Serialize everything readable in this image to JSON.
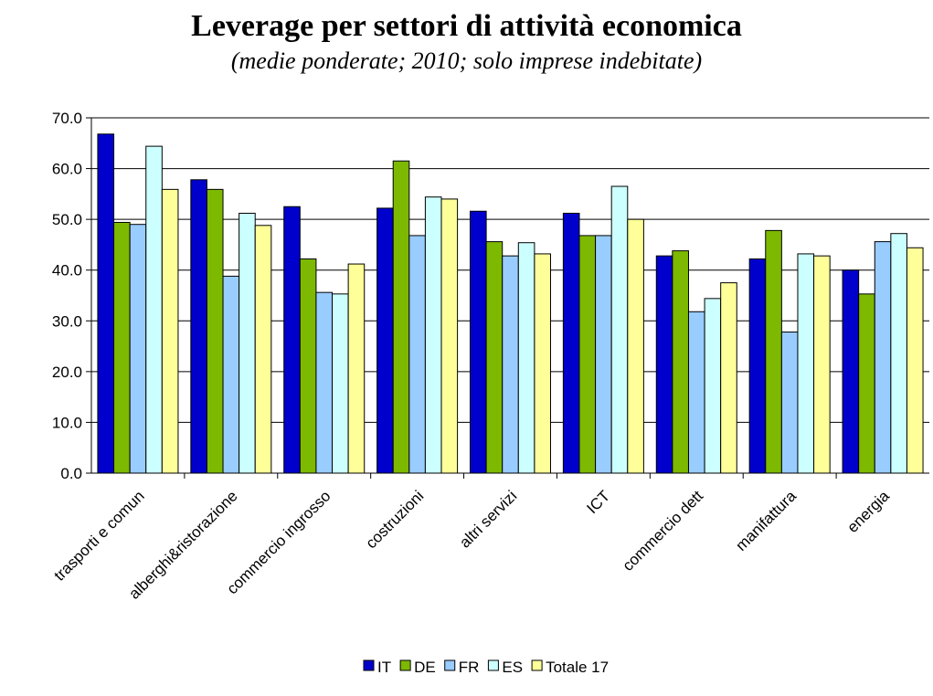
{
  "chart_data": {
    "type": "bar",
    "title": "Leverage per settori di attività economica",
    "subtitle": "(medie ponderate; 2010; solo imprese indebitate)",
    "categories": [
      "trasporti e comun",
      "alberghi&ristorazione",
      "commercio ingrosso",
      "costruzioni",
      "altri servizi",
      "ICT",
      "commercio dett",
      "manifattura",
      "energia"
    ],
    "series": [
      {
        "name": "IT",
        "color": "#0000cc",
        "values": [
          66.8,
          57.8,
          52.5,
          52.2,
          51.6,
          51.2,
          42.8,
          42.2,
          40.0
        ]
      },
      {
        "name": "DE",
        "color": "#7db900",
        "values": [
          49.4,
          55.9,
          42.2,
          61.5,
          45.6,
          46.8,
          43.8,
          47.8,
          35.3
        ]
      },
      {
        "name": "FR",
        "color": "#99ccff",
        "values": [
          49.0,
          38.8,
          35.6,
          46.8,
          42.8,
          46.8,
          31.8,
          27.8,
          45.6
        ]
      },
      {
        "name": "ES",
        "color": "#ccffff",
        "values": [
          64.4,
          51.2,
          35.3,
          54.4,
          45.4,
          56.5,
          34.4,
          43.2,
          47.2
        ]
      },
      {
        "name": "Totale 17",
        "color": "#ffff99",
        "values": [
          55.9,
          48.8,
          41.2,
          54.0,
          43.2,
          50.0,
          37.5,
          42.8,
          44.4
        ]
      }
    ],
    "ylim": [
      0,
      70
    ],
    "yticks": [
      "0.0",
      "10.0",
      "20.0",
      "30.0",
      "40.0",
      "50.0",
      "60.0",
      "70.0"
    ],
    "grid": true,
    "legend": "bottom"
  }
}
